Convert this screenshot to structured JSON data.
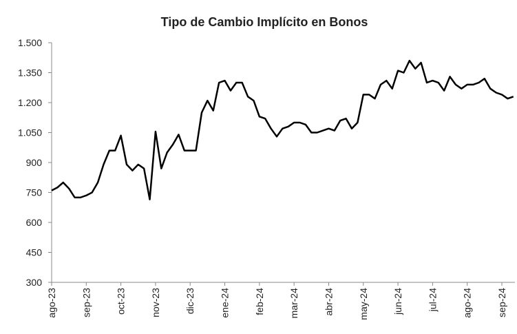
{
  "chart_data": {
    "type": "line",
    "title": "Tipo de Cambio Implícito en Bonos",
    "categories": [
      "ago-23",
      null,
      null,
      null,
      null,
      null,
      "sep-23",
      null,
      null,
      null,
      null,
      null,
      "oct-23",
      null,
      null,
      null,
      null,
      null,
      "nov-23",
      null,
      null,
      null,
      null,
      null,
      "dic-23",
      null,
      null,
      null,
      null,
      null,
      "ene-24",
      null,
      null,
      null,
      null,
      null,
      "feb-24",
      null,
      null,
      null,
      null,
      null,
      "mar-24",
      null,
      null,
      null,
      null,
      null,
      "abr-24",
      null,
      null,
      null,
      null,
      null,
      "may-24",
      null,
      null,
      null,
      null,
      null,
      "jun-24",
      null,
      null,
      null,
      null,
      null,
      "jul-24",
      null,
      null,
      null,
      null,
      null,
      "ago-24",
      null,
      null,
      null,
      null,
      null,
      "sep-24",
      null,
      null
    ],
    "values": [
      760,
      775,
      800,
      770,
      725,
      725,
      735,
      750,
      800,
      890,
      960,
      960,
      1035,
      890,
      860,
      890,
      870,
      715,
      1055,
      870,
      950,
      990,
      1040,
      960,
      960,
      960,
      1150,
      1210,
      1160,
      1300,
      1310,
      1260,
      1300,
      1300,
      1230,
      1210,
      1130,
      1120,
      1070,
      1030,
      1070,
      1080,
      1100,
      1100,
      1090,
      1050,
      1050,
      1060,
      1070,
      1060,
      1110,
      1120,
      1070,
      1100,
      1240,
      1240,
      1220,
      1290,
      1310,
      1270,
      1360,
      1350,
      1410,
      1370,
      1400,
      1300,
      1310,
      1300,
      1260,
      1330,
      1290,
      1270,
      1290,
      1290,
      1300,
      1320,
      1270,
      1250,
      1240,
      1220,
      1230
    ],
    "color": "#000000",
    "ylim": [
      300,
      1500
    ],
    "yticks": [
      300,
      450,
      600,
      750,
      900,
      {
        "value": 1050,
        "label": "1.050"
      },
      {
        "value": 1200,
        "label": "1.200"
      },
      {
        "value": 1350,
        "label": "1.350"
      },
      {
        "value": 1500,
        "label": "1.500"
      }
    ],
    "grid": false
  }
}
